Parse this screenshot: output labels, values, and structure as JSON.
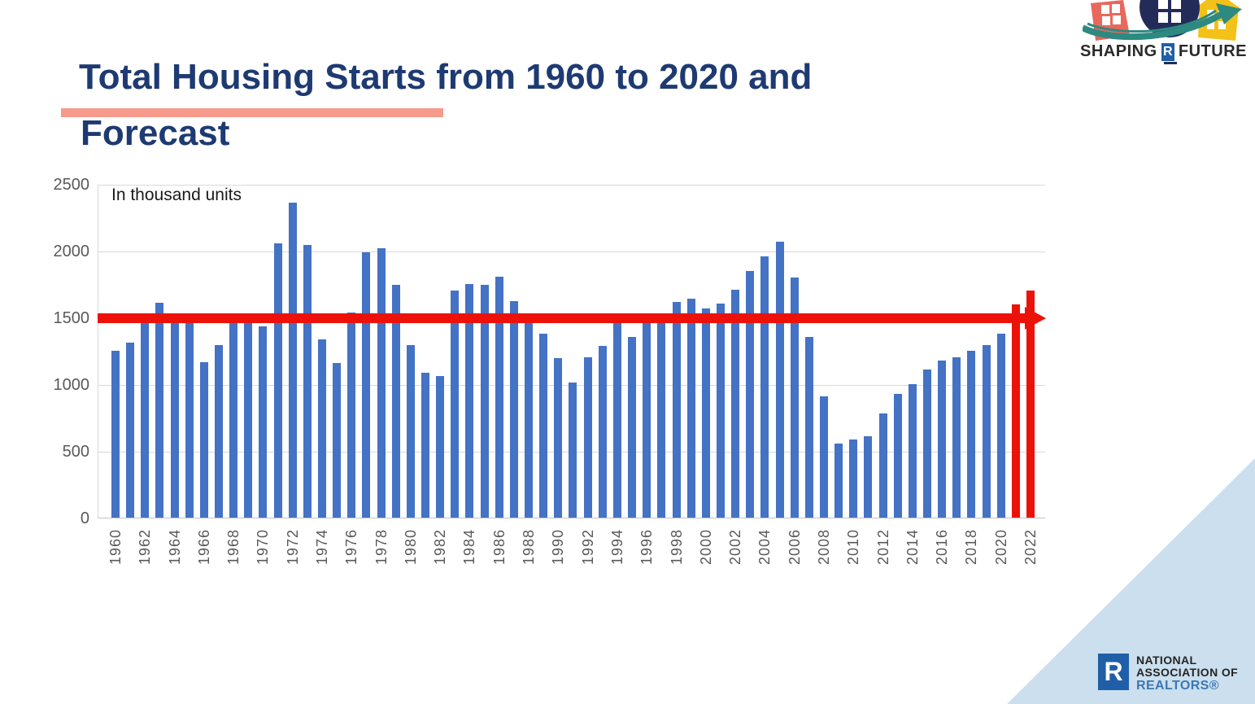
{
  "header": {
    "title_line1": "Total Housing Starts from 1960 to 2020 and",
    "title_line2": "Forecast",
    "title_color": "#1e3a72",
    "underline_color": "#f79a8b"
  },
  "chart_data": {
    "type": "bar",
    "title": "Total Housing Starts from 1960 to 2020 and Forecast",
    "annotation": "In thousand units",
    "xlabel": "",
    "ylabel": "",
    "ylim": [
      0,
      2500
    ],
    "yticks": [
      0,
      500,
      1000,
      1500,
      2000,
      2500
    ],
    "grid": true,
    "legend_position": "none",
    "bar_color": "#4472c4",
    "forecast_bar_color": "#ed1209",
    "reference_line": {
      "value": 1500,
      "color": "#ed1209",
      "arrow": "right"
    },
    "years": [
      1960,
      1961,
      1962,
      1963,
      1964,
      1965,
      1966,
      1967,
      1968,
      1969,
      1970,
      1971,
      1972,
      1973,
      1974,
      1975,
      1976,
      1977,
      1978,
      1979,
      1980,
      1981,
      1982,
      1983,
      1984,
      1985,
      1986,
      1987,
      1988,
      1989,
      1990,
      1991,
      1992,
      1993,
      1994,
      1995,
      1996,
      1997,
      1998,
      1999,
      2000,
      2001,
      2002,
      2003,
      2004,
      2005,
      2006,
      2007,
      2008,
      2009,
      2010,
      2011,
      2012,
      2013,
      2014,
      2015,
      2016,
      2017,
      2018,
      2019,
      2020,
      2021,
      2022
    ],
    "values": [
      1252,
      1313,
      1463,
      1610,
      1529,
      1473,
      1165,
      1292,
      1470,
      1467,
      1434,
      2052,
      2357,
      2045,
      1338,
      1160,
      1538,
      1987,
      2020,
      1745,
      1292,
      1084,
      1062,
      1703,
      1750,
      1742,
      1805,
      1620,
      1488,
      1376,
      1193,
      1014,
      1200,
      1288,
      1457,
      1354,
      1477,
      1474,
      1617,
      1641,
      1569,
      1603,
      1705,
      1848,
      1956,
      2068,
      1801,
      1355,
      906,
      554,
      587,
      609,
      781,
      925,
      1003,
      1112,
      1174,
      1203,
      1250,
      1290,
      1380,
      1600,
      1700
    ],
    "forecast_years": [
      2021,
      2022
    ],
    "x_tick_labels": [
      "1960",
      "1962",
      "1964",
      "1966",
      "1968",
      "1970",
      "1972",
      "1974",
      "1976",
      "1978",
      "1980",
      "1982",
      "1984",
      "1986",
      "1988",
      "1990",
      "1992",
      "1994",
      "1996",
      "1998",
      "2000",
      "2002",
      "2004",
      "2006",
      "2008",
      "2010",
      "2012",
      "2014",
      "2016",
      "2018",
      "2020",
      "2022"
    ]
  },
  "branding": {
    "top_logo": {
      "word1": "SHAPING",
      "r_letter": "R",
      "word2": "FUTURE",
      "colors": {
        "red_house": "#e8685c",
        "navy_circle": "#232c59",
        "yellow_house": "#f3c117",
        "teal_arrow": "#2d8a80",
        "r_box_blue": "#1f5fa8"
      }
    },
    "bottom_logo": {
      "r_letter": "R",
      "line1": "NATIONAL",
      "line2": "ASSOCIATION OF",
      "line3": "REALTORS®",
      "box_color": "#1f5fa8",
      "realtors_color": "#3c78b4"
    },
    "corner_triangle_color": "#cbdfee"
  }
}
